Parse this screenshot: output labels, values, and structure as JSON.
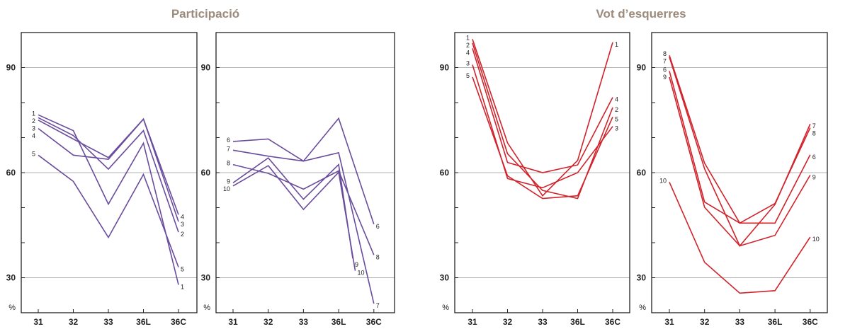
{
  "titles": [
    "Participació",
    "Vot d’esquerres"
  ],
  "chart_data": [
    {
      "type": "line",
      "title": "Participació",
      "color": "#6a4c9c",
      "categories": [
        "31",
        "32",
        "33",
        "36L",
        "36C"
      ],
      "ylabel": "%",
      "yticks": [
        "90",
        "60",
        "30"
      ],
      "ylim": [
        20,
        100
      ],
      "grid": [
        90,
        60,
        30
      ],
      "series": [
        {
          "name": "1",
          "values": [
            76.5,
            72,
            51,
            68.4,
            28
          ]
        },
        {
          "name": "2",
          "values": [
            75.7,
            70.6,
            61,
            72,
            43
          ]
        },
        {
          "name": "3",
          "values": [
            75,
            69.6,
            64.3,
            75.3,
            46
          ]
        },
        {
          "name": "4",
          "values": [
            72.6,
            65,
            63.8,
            75.3,
            48
          ]
        },
        {
          "name": "5",
          "values": [
            65,
            57.5,
            41.5,
            59.5,
            33
          ]
        }
      ]
    },
    {
      "type": "line",
      "title": "Participació",
      "color": "#6a4c9c",
      "categories": [
        "31",
        "32",
        "33",
        "36L",
        "36C"
      ],
      "ylabel": "%",
      "yticks": [
        "90",
        "60",
        "30"
      ],
      "ylim": [
        20,
        100
      ],
      "grid": [
        90,
        60,
        30
      ],
      "series": [
        {
          "name": "6",
          "values": [
            68.9,
            69.6,
            63.3,
            75.5,
            45.3
          ]
        },
        {
          "name": "7",
          "values": [
            66.4,
            64.7,
            63.3,
            65.7,
            22.6
          ]
        },
        {
          "name": "8",
          "values": [
            62.3,
            59.8,
            55.3,
            60.5,
            36.5
          ]
        },
        {
          "name": "9",
          "x": [
            0,
            1,
            2,
            3,
            3.4
          ],
          "values": [
            57.1,
            64.2,
            52.4,
            62.3,
            35.5
          ]
        },
        {
          "name": "10",
          "x": [
            0,
            1,
            2,
            3,
            3.47
          ],
          "values": [
            56.2,
            62,
            49.5,
            60.1,
            32
          ]
        }
      ]
    },
    {
      "type": "line",
      "title": "Vot d’esquerres",
      "color": "#d0232b",
      "categories": [
        "31",
        "32",
        "33",
        "36L",
        "36C"
      ],
      "ylabel": "%",
      "yticks": [
        "90",
        "60",
        "30"
      ],
      "ylim": [
        20,
        100
      ],
      "grid": [
        90,
        60,
        30
      ],
      "series": [
        {
          "name": "1",
          "values": [
            98.1,
            68.5,
            53.4,
            63.5,
            97.2
          ]
        },
        {
          "name": "2",
          "values": [
            97,
            65.4,
            54.9,
            52.6,
            78.6
          ]
        },
        {
          "name": "4",
          "values": [
            95.5,
            62.9,
            60,
            62.2,
            81.5
          ]
        },
        {
          "name": "3",
          "values": [
            90.8,
            58.3,
            55.7,
            60,
            73.2
          ]
        },
        {
          "name": "5",
          "values": [
            87.3,
            59.1,
            52.6,
            53.4,
            75.9
          ]
        }
      ]
    },
    {
      "type": "line",
      "title": "Vot d’esquerres",
      "color": "#d0232b",
      "categories": [
        "31",
        "32",
        "33",
        "36L",
        "36C"
      ],
      "ylabel": "%",
      "yticks": [
        "90",
        "60",
        "30"
      ],
      "ylim": [
        20,
        100
      ],
      "grid": [
        90,
        60,
        30
      ],
      "series": [
        {
          "name": "8",
          "values": [
            93.5,
            62.7,
            45.6,
            51.2,
            72.8
          ]
        },
        {
          "name": "7",
          "values": [
            93,
            61.1,
            39.1,
            50.9,
            73.9
          ]
        },
        {
          "name": "6",
          "values": [
            89,
            51.6,
            45.6,
            45.6,
            65.1
          ]
        },
        {
          "name": "9",
          "values": [
            87.3,
            50.1,
            39.1,
            42.1,
            59.3
          ]
        },
        {
          "name": "10",
          "values": [
            57.3,
            34.4,
            25.6,
            26.3,
            41.6
          ]
        }
      ]
    }
  ]
}
